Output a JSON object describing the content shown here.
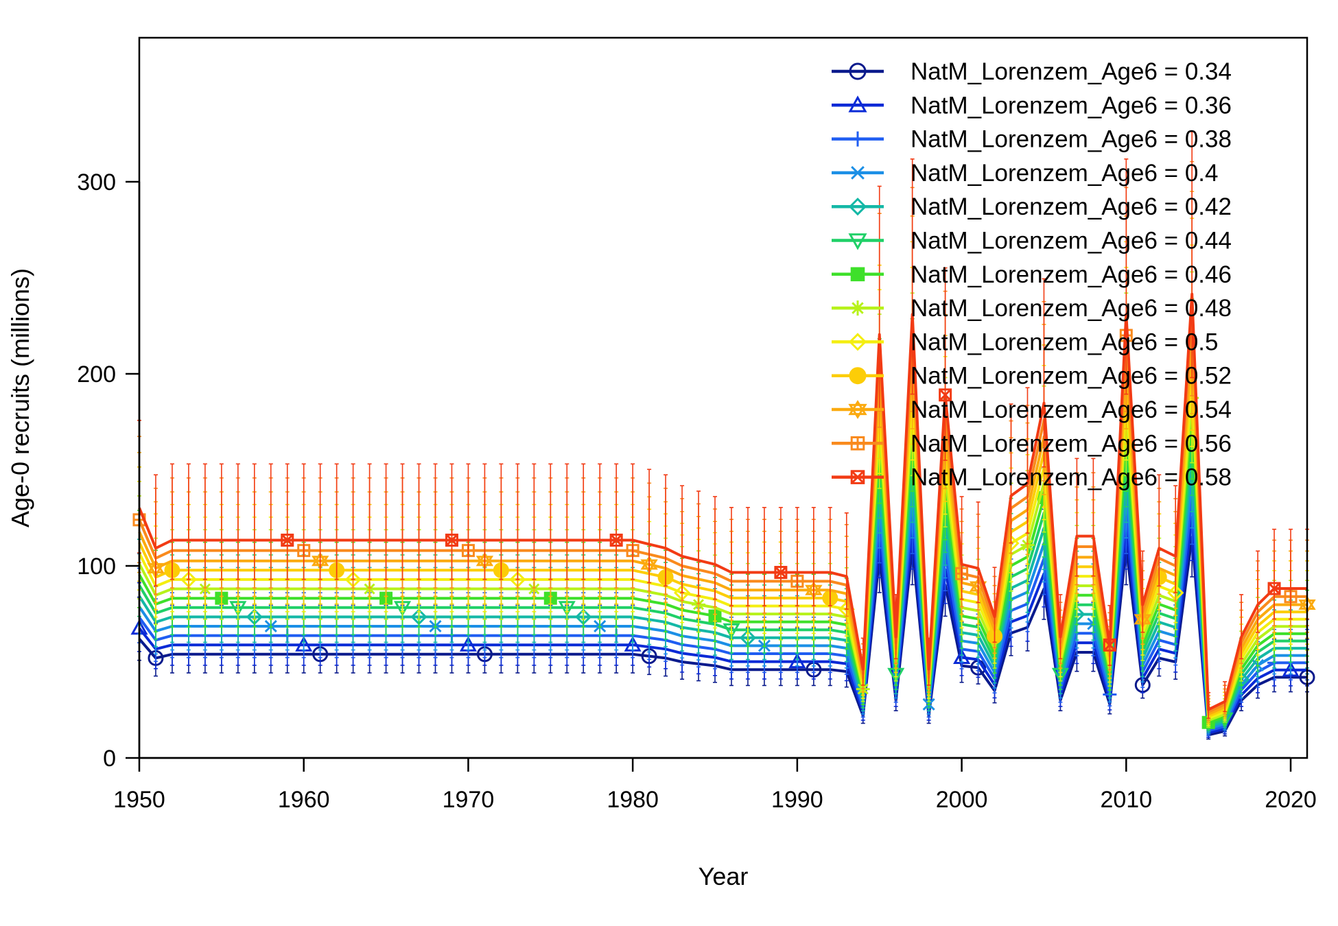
{
  "chart_data": {
    "type": "line",
    "title": "",
    "xlabel": "Year",
    "ylabel": "Age-0 recruits (millions)",
    "xlim": [
      1950,
      2021
    ],
    "ylim": [
      0,
      375
    ],
    "xticks": [
      1950,
      1960,
      1970,
      1980,
      1990,
      2000,
      2010,
      2020
    ],
    "yticks": [
      0,
      100,
      200,
      300
    ],
    "error_bars": true,
    "legend_position": "top-right",
    "base_series": {
      "years": [
        1950,
        1951,
        1952,
        1953,
        1954,
        1955,
        1956,
        1957,
        1958,
        1959,
        1960,
        1961,
        1962,
        1963,
        1964,
        1965,
        1966,
        1967,
        1968,
        1969,
        1970,
        1971,
        1972,
        1973,
        1974,
        1975,
        1976,
        1977,
        1978,
        1979,
        1980,
        1981,
        1982,
        1983,
        1984,
        1985,
        1986,
        1987,
        1988,
        1989,
        1990,
        1991,
        1992,
        1993,
        1994,
        1995,
        1996,
        1997,
        1998,
        1999,
        2000,
        2001,
        2002,
        2003,
        2004,
        2005,
        2006,
        2007,
        2008,
        2009,
        2010,
        2011,
        2012,
        2013,
        2014,
        2015,
        2016,
        2017,
        2018,
        2019,
        2020,
        2021
      ],
      "values": [
        62,
        52,
        54,
        54,
        54,
        54,
        54,
        54,
        54,
        54,
        54,
        54,
        54,
        54,
        54,
        54,
        54,
        54,
        54,
        54,
        54,
        54,
        54,
        54,
        54,
        54,
        54,
        54,
        54,
        54,
        54,
        53,
        52,
        50,
        49,
        48,
        46,
        46,
        46,
        46,
        46,
        46,
        46,
        45,
        22,
        105,
        30,
        110,
        22,
        90,
        48,
        47,
        35,
        65,
        68,
        88,
        30,
        55,
        55,
        28,
        110,
        38,
        52,
        50,
        115,
        12,
        14,
        30,
        38,
        42,
        42,
        42
      ]
    },
    "series": [
      {
        "name": "NatM_Lorenzem_Age6 = 0.34",
        "multiplier": 1.0,
        "color": "#0a1a8c",
        "marker": "circle"
      },
      {
        "name": "NatM_Lorenzem_Age6 = 0.36",
        "multiplier": 1.09,
        "color": "#0a2ad6",
        "marker": "triangle"
      },
      {
        "name": "NatM_Lorenzem_Age6 = 0.38",
        "multiplier": 1.18,
        "color": "#1f5df2",
        "marker": "plus"
      },
      {
        "name": "NatM_Lorenzem_Age6 = 0.4",
        "multiplier": 1.27,
        "color": "#1b8fe6",
        "marker": "x"
      },
      {
        "name": "NatM_Lorenzem_Age6 = 0.42",
        "multiplier": 1.36,
        "color": "#14b8a6",
        "marker": "diamond"
      },
      {
        "name": "NatM_Lorenzem_Age6 = 0.44",
        "multiplier": 1.45,
        "color": "#1fd067",
        "marker": "triangle-down"
      },
      {
        "name": "NatM_Lorenzem_Age6 = 0.46",
        "multiplier": 1.54,
        "color": "#3ee02a",
        "marker": "square"
      },
      {
        "name": "NatM_Lorenzem_Age6 = 0.48",
        "multiplier": 1.63,
        "color": "#b7f21a",
        "marker": "star"
      },
      {
        "name": "NatM_Lorenzem_Age6 = 0.5",
        "multiplier": 1.72,
        "color": "#f4ee10",
        "marker": "diamond"
      },
      {
        "name": "NatM_Lorenzem_Age6 = 0.52",
        "multiplier": 1.81,
        "color": "#fccd07",
        "marker": "circle-filled"
      },
      {
        "name": "NatM_Lorenzem_Age6 = 0.54",
        "multiplier": 1.9,
        "color": "#fbaa0f",
        "marker": "hexagram"
      },
      {
        "name": "NatM_Lorenzem_Age6 = 0.56",
        "multiplier": 2.0,
        "color": "#f98a1d",
        "marker": "square-plus"
      },
      {
        "name": "NatM_Lorenzem_Age6 = 0.58",
        "multiplier": 2.1,
        "color": "#f23b14",
        "marker": "asterisk-box"
      }
    ]
  }
}
